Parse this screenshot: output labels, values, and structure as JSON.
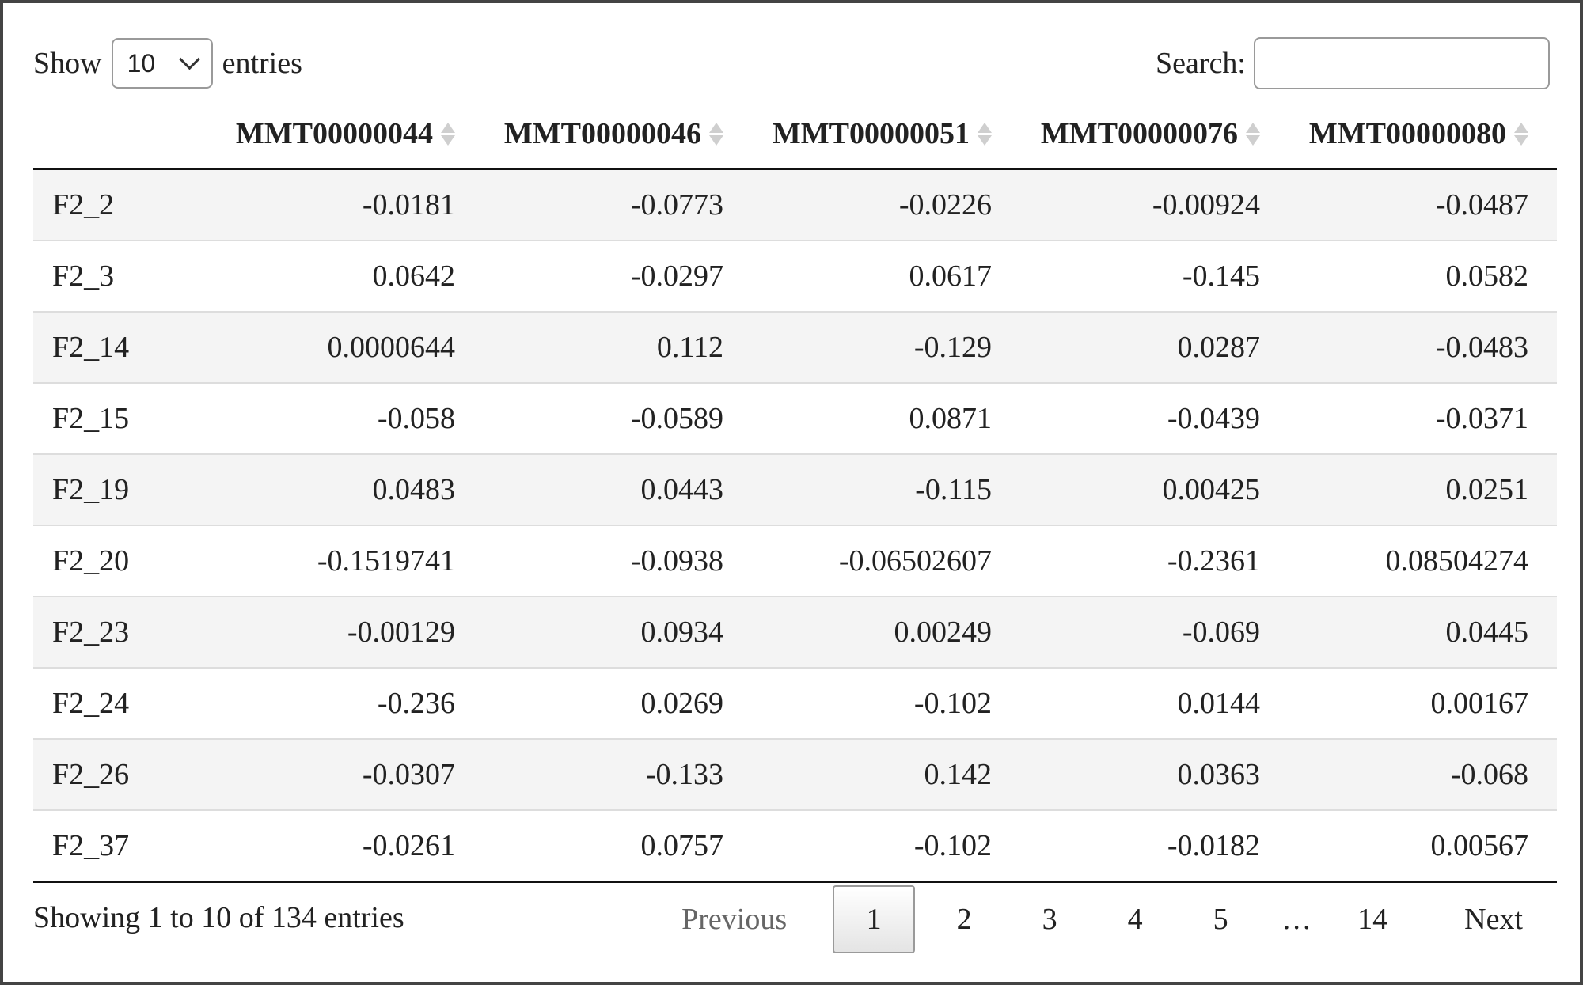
{
  "length_control": {
    "prefix": "Show",
    "selected": "10",
    "suffix": "entries"
  },
  "search": {
    "label": "Search:",
    "value": ""
  },
  "table": {
    "columns": [
      "",
      "MMT00000044",
      "MMT00000046",
      "MMT00000051",
      "MMT00000076",
      "MMT00000080"
    ],
    "rows": [
      [
        "F2_2",
        "-0.0181",
        "-0.0773",
        "-0.0226",
        "-0.00924",
        "-0.0487"
      ],
      [
        "F2_3",
        "0.0642",
        "-0.0297",
        "0.0617",
        "-0.145",
        "0.0582"
      ],
      [
        "F2_14",
        "0.0000644",
        "0.112",
        "-0.129",
        "0.0287",
        "-0.0483"
      ],
      [
        "F2_15",
        "-0.058",
        "-0.0589",
        "0.0871",
        "-0.0439",
        "-0.0371"
      ],
      [
        "F2_19",
        "0.0483",
        "0.0443",
        "-0.115",
        "0.00425",
        "0.0251"
      ],
      [
        "F2_20",
        "-0.1519741",
        "-0.0938",
        "-0.06502607",
        "-0.2361",
        "0.08504274"
      ],
      [
        "F2_23",
        "-0.00129",
        "0.0934",
        "0.00249",
        "-0.069",
        "0.0445"
      ],
      [
        "F2_24",
        "-0.236",
        "0.0269",
        "-0.102",
        "0.0144",
        "0.00167"
      ],
      [
        "F2_26",
        "-0.0307",
        "-0.133",
        "0.142",
        "0.0363",
        "-0.068"
      ],
      [
        "F2_37",
        "-0.0261",
        "0.0757",
        "-0.102",
        "-0.0182",
        "0.00567"
      ]
    ]
  },
  "footer": {
    "info": "Showing 1 to 10 of 134 entries"
  },
  "pagination": {
    "previous": "Previous",
    "pages": [
      "1",
      "2",
      "3",
      "4",
      "5",
      "…",
      "14"
    ],
    "current": "1",
    "next": "Next"
  }
}
